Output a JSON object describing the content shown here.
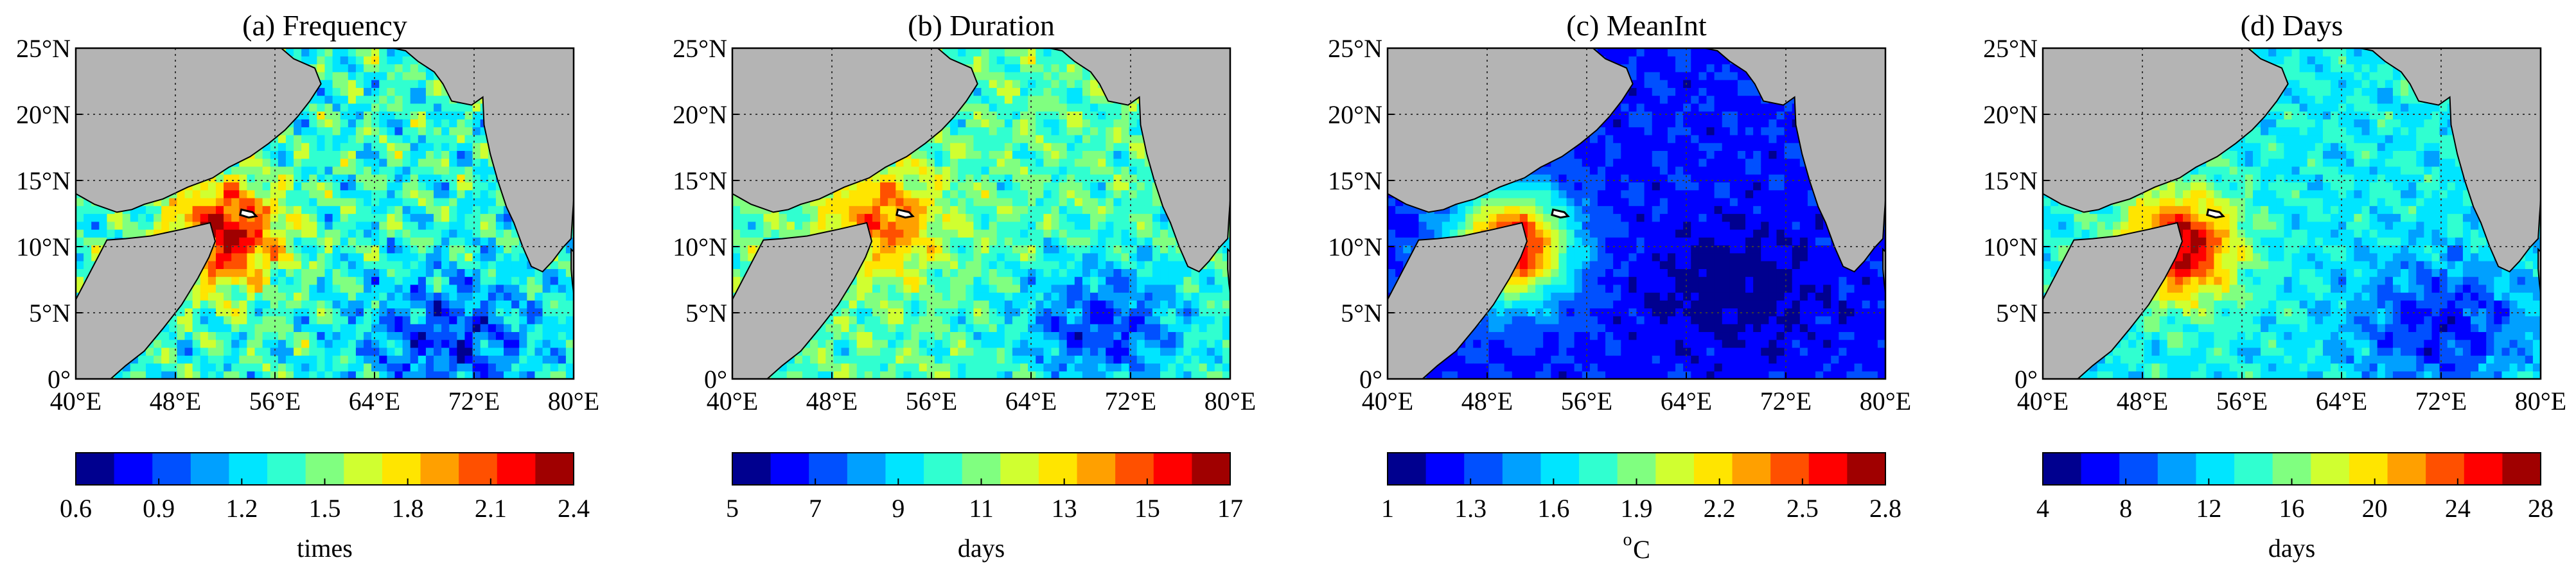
{
  "figure": {
    "colors": {
      "land": "#b4b4b4",
      "frame": "#000000",
      "grid": "#3a3a3a",
      "background": "#ffffff"
    },
    "colormap": [
      "#00008f",
      "#0000ff",
      "#0050ff",
      "#00a0ff",
      "#00e5ff",
      "#30ffd0",
      "#80ff80",
      "#d0ff30",
      "#ffe500",
      "#ffa000",
      "#ff5000",
      "#ff0000",
      "#a00000"
    ]
  },
  "chart_data": [
    {
      "type": "heatmap",
      "title": "(a) Frequency",
      "lon_ticks": [
        "40°E",
        "48°E",
        "56°E",
        "64°E",
        "72°E",
        "80°E"
      ],
      "lat_ticks": [
        "0°",
        "5°N",
        "10°N",
        "15°N",
        "20°N",
        "25°N"
      ],
      "lon_range": [
        40,
        80
      ],
      "lat_range": [
        0,
        25
      ],
      "grid": true,
      "colorbar": {
        "ticks": [
          "0.6",
          "0.9",
          "1.2",
          "1.5",
          "1.8",
          "2.1",
          "2.4"
        ],
        "range": [
          0.6,
          2.4
        ],
        "label": "times"
      },
      "field": {
        "base": 1.35,
        "amplitude": 0.45,
        "hotspot": {
          "lon": 52,
          "lat": 11,
          "value": 2.3
        },
        "coldspot": {
          "lon": 70,
          "lat": 3,
          "value": 0.9
        }
      }
    },
    {
      "type": "heatmap",
      "title": "(b) Duration",
      "lon_ticks": [
        "40°E",
        "48°E",
        "56°E",
        "64°E",
        "72°E",
        "80°E"
      ],
      "lat_ticks": [
        "0°",
        "5°N",
        "10°N",
        "15°N",
        "20°N",
        "25°N"
      ],
      "lon_range": [
        40,
        80
      ],
      "lat_range": [
        0,
        25
      ],
      "grid": true,
      "colorbar": {
        "ticks": [
          "5",
          "7",
          "9",
          "11",
          "13",
          "15",
          "17"
        ],
        "range": [
          5,
          17
        ],
        "label": "days"
      },
      "field": {
        "base": 10.5,
        "amplitude": 2.2,
        "hotspot": {
          "lon": 52,
          "lat": 12,
          "value": 14.5
        },
        "coldspot": {
          "lon": 70,
          "lat": 4,
          "value": 7.0
        }
      }
    },
    {
      "type": "heatmap",
      "title": "(c) MeanInt",
      "lon_ticks": [
        "40°E",
        "48°E",
        "56°E",
        "64°E",
        "72°E",
        "80°E"
      ],
      "lat_ticks": [
        "0°",
        "5°N",
        "10°N",
        "15°N",
        "20°N",
        "25°N"
      ],
      "lon_range": [
        40,
        80
      ],
      "lat_range": [
        0,
        25
      ],
      "grid": true,
      "colorbar": {
        "ticks": [
          "1",
          "1.3",
          "1.6",
          "1.9",
          "2.2",
          "2.5",
          "2.8"
        ],
        "range": [
          1,
          2.8
        ],
        "label_main": "C",
        "label_sup": "o"
      },
      "field": {
        "base": 1.25,
        "amplitude": 0.15,
        "hotspot": {
          "lon": 50,
          "lat": 10,
          "value": 2.7
        },
        "coldspot": {
          "lon": 68,
          "lat": 7,
          "value": 1.05
        }
      }
    },
    {
      "type": "heatmap",
      "title": "(d) Days",
      "lon_ticks": [
        "40°E",
        "48°E",
        "56°E",
        "64°E",
        "72°E",
        "80°E"
      ],
      "lat_ticks": [
        "0°",
        "5°N",
        "10°N",
        "15°N",
        "20°N",
        "25°N"
      ],
      "lon_range": [
        40,
        80
      ],
      "lat_range": [
        0,
        25
      ],
      "grid": true,
      "colorbar": {
        "ticks": [
          "4",
          "8",
          "12",
          "16",
          "20",
          "24",
          "28"
        ],
        "range": [
          4,
          28
        ],
        "label": "days"
      },
      "field": {
        "base": 13,
        "amplitude": 3.5,
        "hotspot": {
          "lon": 51,
          "lat": 10,
          "value": 27
        },
        "coldspot": {
          "lon": 72,
          "lat": 4,
          "value": 7
        }
      }
    }
  ]
}
